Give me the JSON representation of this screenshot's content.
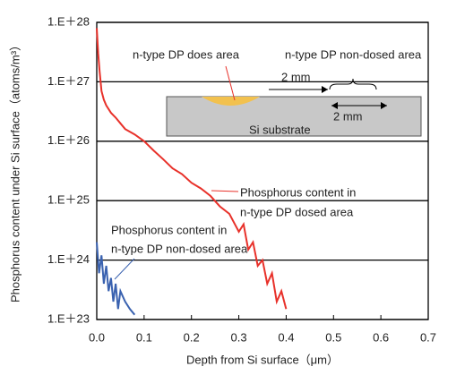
{
  "chart_data": {
    "type": "line",
    "xlabel": "Depth from Si surface（μm）",
    "ylabel": "Phosphorus content under Si surface（atoms/m³）",
    "xlim": [
      0,
      0.7
    ],
    "xticks": [
      {
        "value": 0,
        "label": "0.0"
      },
      0.1,
      0.2,
      0.3,
      0.4,
      0.5,
      0.6,
      0.7
    ],
    "ylim": [
      1e+23,
      1e+28
    ],
    "log_y": true,
    "grid": true,
    "yticks": [
      {
        "value": 1e+23,
        "label": "1.E＋23"
      },
      {
        "value": 1e+24,
        "label": "1.E＋24"
      },
      {
        "value": 1e+25,
        "label": "1.E＋25"
      },
      {
        "value": 1e+26,
        "label": "1.E＋26"
      },
      {
        "value": 1e+27,
        "label": "1.E＋27"
      },
      {
        "value": 1e+28,
        "label": "1.E＋28"
      }
    ],
    "series": [
      {
        "color": "#e8312a",
        "x": [
          0.0,
          0.003,
          0.006,
          0.01,
          0.015,
          0.02,
          0.03,
          0.04,
          0.05,
          0.06,
          0.08,
          0.1,
          0.12,
          0.14,
          0.16,
          0.18,
          0.2,
          0.22,
          0.24,
          0.26,
          0.28,
          0.3,
          0.31,
          0.32,
          0.33,
          0.34,
          0.35,
          0.36,
          0.37,
          0.38,
          0.39,
          0.4
        ],
        "values": [
          8e+27,
          3e+27,
          1.5e+27,
          7e+26,
          5e+26,
          4e+26,
          3e+26,
          2.5e+26,
          2e+26,
          1.6e+26,
          1.3e+26,
          1e+26,
          7e+25,
          5e+25,
          3.5e+25,
          2.8e+25,
          2e+25,
          1.6e+25,
          1.2e+25,
          8e+24,
          6e+24,
          3e+24,
          4e+24,
          1.5e+24,
          2e+24,
          8e+23,
          1e+24,
          4e+23,
          6e+23,
          2e+23,
          3e+23,
          1.5e+23
        ]
      },
      {
        "color": "#3a62b0",
        "x": [
          0.0,
          0.005,
          0.01,
          0.015,
          0.02,
          0.025,
          0.03,
          0.035,
          0.04,
          0.045,
          0.05,
          0.06,
          0.07,
          0.08
        ],
        "values": [
          2e+24,
          6e+23,
          1.2e+24,
          4e+23,
          8e+23,
          3e+23,
          5e+23,
          2e+23,
          4e+23,
          1.5e+23,
          3e+23,
          2e+23,
          1.5e+23,
          1.2e+23
        ]
      }
    ],
    "annotations": [
      "n-type DP does area",
      "n-type DP non-dosed area",
      "2 mm",
      "2 mm",
      "Si substrate",
      "Phosphorus content in",
      "n-type DP dosed area",
      "Phosphorus content in",
      "n-type DP non-dosed area"
    ]
  }
}
